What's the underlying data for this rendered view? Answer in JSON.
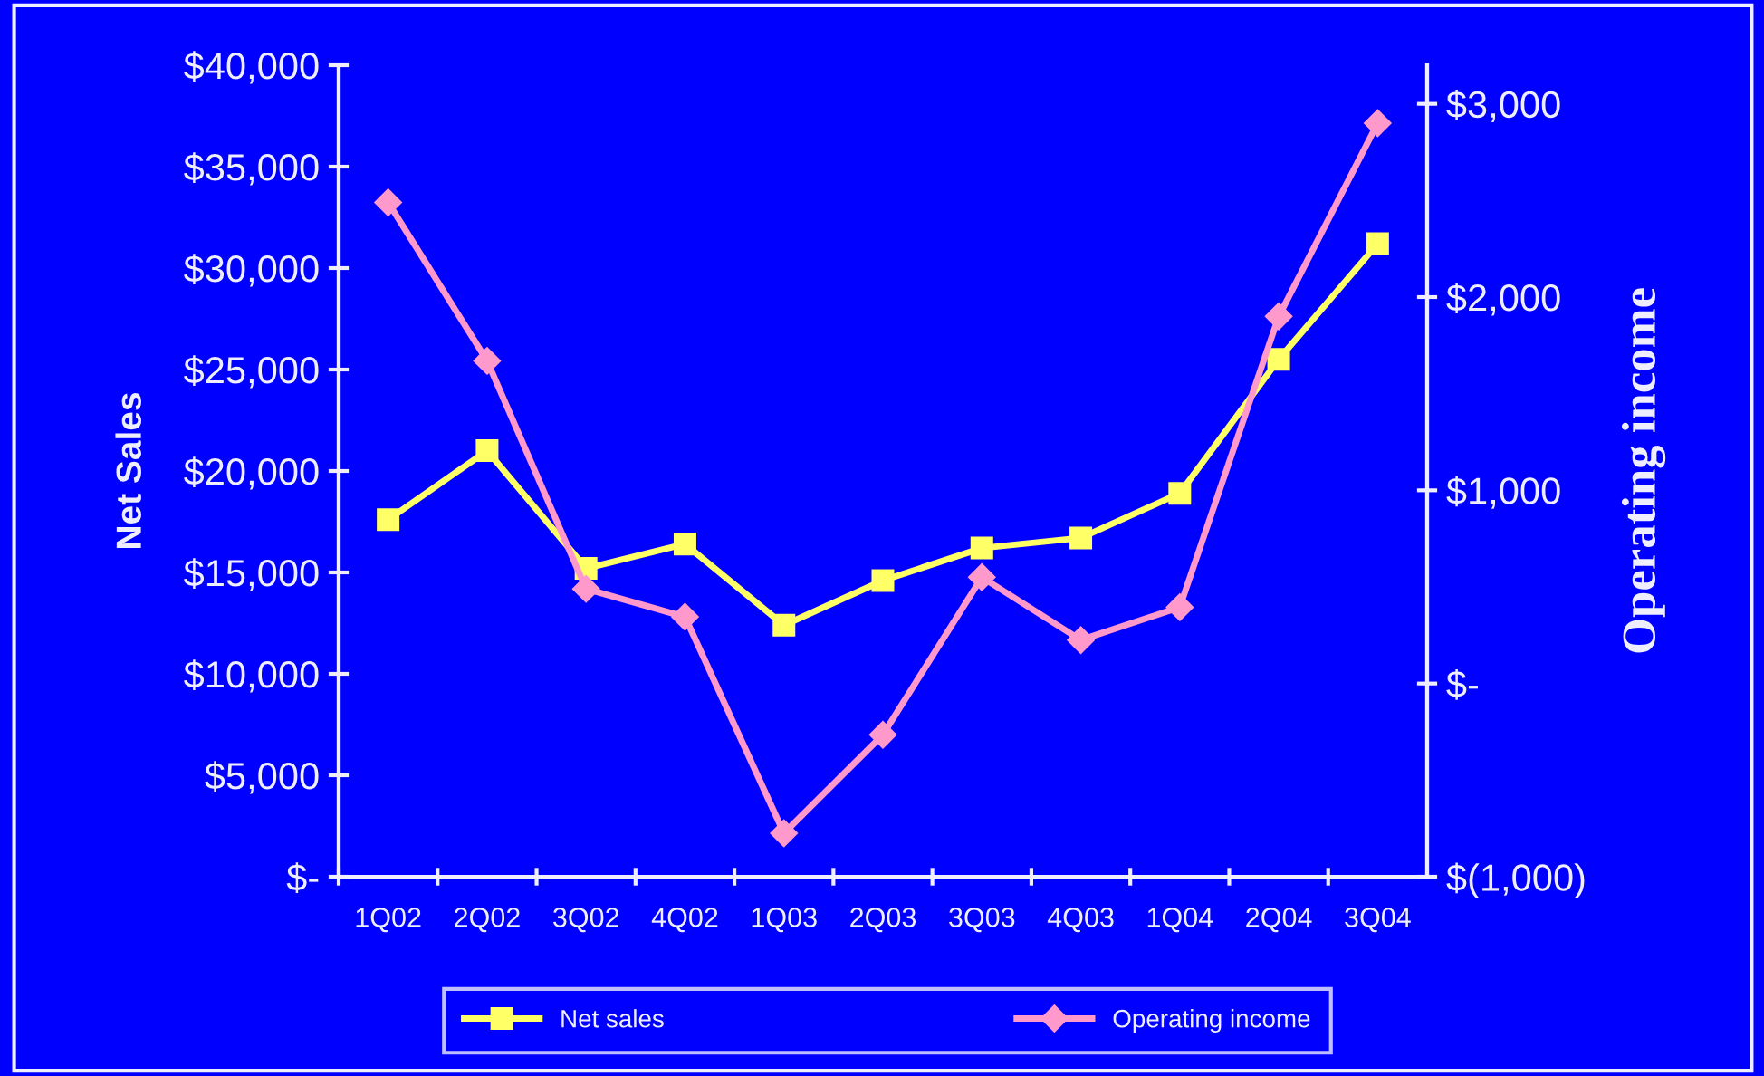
{
  "chart_data": {
    "type": "line",
    "ylabel": "Net Sales",
    "y2label": "Operating income",
    "categories": [
      "1Q02",
      "2Q02",
      "3Q02",
      "4Q02",
      "1Q03",
      "2Q03",
      "3Q03",
      "4Q03",
      "1Q04",
      "2Q04",
      "3Q04"
    ],
    "series": [
      {
        "name": "Net sales",
        "color": "#ffff66",
        "marker": "square",
        "values": [
          17600,
          21000,
          15200,
          16400,
          12400,
          14600,
          16200,
          16700,
          18900,
          25500,
          31200
        ]
      },
      {
        "name": "Operating income",
        "color": "#ff99cc",
        "marker": "diamond",
        "axis": "y2",
        "values": [
          2490,
          1670,
          490,
          345,
          -775,
          -265,
          550,
          225,
          395,
          1900,
          2900
        ]
      }
    ],
    "ylim": [
      0,
      40000
    ],
    "yticks": [
      {
        "value": 0,
        "label": "$-"
      },
      {
        "value": 5000,
        "label": "$5,000"
      },
      {
        "value": 10000,
        "label": "$10,000"
      },
      {
        "value": 15000,
        "label": "$15,000"
      },
      {
        "value": 20000,
        "label": "$20,000"
      },
      {
        "value": 25000,
        "label": "$25,000"
      },
      {
        "value": 30000,
        "label": "$30,000"
      },
      {
        "value": 35000,
        "label": "$35,000"
      },
      {
        "value": 40000,
        "label": "$40,000"
      }
    ],
    "y2lim": [
      -1000,
      3200
    ],
    "y2ticks": [
      {
        "value": -1000,
        "label": "$(1,000)"
      },
      {
        "value": 0,
        "label": "$-"
      },
      {
        "value": 1000,
        "label": "$1,000"
      },
      {
        "value": 2000,
        "label": "$2,000"
      },
      {
        "value": 3000,
        "label": "$3,000"
      }
    ],
    "grid": false,
    "legend": "bottom",
    "line_style": "solid"
  }
}
